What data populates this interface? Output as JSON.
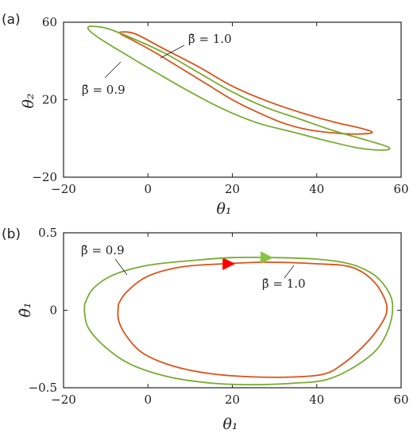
{
  "chart_data": [
    {
      "type": "line",
      "panel_label": "(a)",
      "xlabel": "θ₁",
      "ylabel": "θ₂",
      "xlim": [
        -20,
        60
      ],
      "ylim": [
        -20,
        60
      ],
      "xticks": [
        -20,
        0,
        20,
        40,
        60
      ],
      "yticks": [
        -20,
        20,
        60
      ],
      "xtick_labels": [
        "−20",
        "0",
        "20",
        "40",
        "60"
      ],
      "ytick_labels": [
        "−20",
        "20",
        "60"
      ],
      "grid": false,
      "series": [
        {
          "name": "β̄ = 1.0",
          "color": "#d95319",
          "points": [
            [
              -6.5,
              55
            ],
            [
              -3,
              54
            ],
            [
              4,
              46
            ],
            [
              12,
              37
            ],
            [
              20,
              27
            ],
            [
              28,
              19.5
            ],
            [
              36,
              13.5
            ],
            [
              44,
              8.5
            ],
            [
              50,
              5.5
            ],
            [
              53,
              3.5
            ],
            [
              52,
              2.5
            ],
            [
              46,
              2.5
            ],
            [
              38,
              4.5
            ],
            [
              32,
              8
            ],
            [
              26,
              13.5
            ],
            [
              20,
              20
            ],
            [
              14,
              28
            ],
            [
              8,
              36
            ],
            [
              2,
              44
            ],
            [
              -3,
              50
            ],
            [
              -6.5,
              54
            ],
            [
              -6.5,
              55
            ]
          ]
        },
        {
          "name": "β̄ = 0.9",
          "color": "#77ac30",
          "points": [
            [
              -14,
              58
            ],
            [
              -10,
              57
            ],
            [
              -4,
              52
            ],
            [
              4,
              44
            ],
            [
              12,
              34
            ],
            [
              20,
              24
            ],
            [
              28,
              16
            ],
            [
              36,
              10
            ],
            [
              44,
              4
            ],
            [
              52,
              -1
            ],
            [
              57,
              -4.5
            ],
            [
              56,
              -6
            ],
            [
              50,
              -5
            ],
            [
              42,
              -1
            ],
            [
              34,
              3.5
            ],
            [
              26,
              8
            ],
            [
              18,
              15
            ],
            [
              10,
              24
            ],
            [
              2,
              34
            ],
            [
              -5,
              43
            ],
            [
              -11,
              51
            ],
            [
              -14,
              56
            ],
            [
              -14,
              58
            ]
          ]
        }
      ],
      "annotations": [
        "β̄ = 1.0",
        "β̄ = 0.9"
      ]
    },
    {
      "type": "line",
      "panel_label": "(b)",
      "xlabel": "θ₁",
      "ylabel": "θ̇₁",
      "xlim": [
        -20,
        60
      ],
      "ylim": [
        -0.5,
        0.5
      ],
      "xticks": [
        -20,
        0,
        20,
        40,
        60
      ],
      "yticks": [
        -0.5,
        0,
        0.5
      ],
      "xtick_labels": [
        "−20",
        "0",
        "20",
        "40",
        "60"
      ],
      "ytick_labels": [
        "−0.5",
        "0",
        "0.5"
      ],
      "grid": false,
      "series": [
        {
          "name": "β̄ = 1.0",
          "color": "#d95319",
          "marker": {
            "x": 19,
            "y": 0.3,
            "color": "#ff0000",
            "shape": "triangle-right"
          },
          "points": [
            [
              -7,
              0.04
            ],
            [
              -5,
              0.12
            ],
            [
              0,
              0.22
            ],
            [
              8,
              0.28
            ],
            [
              18,
              0.3
            ],
            [
              28,
              0.31
            ],
            [
              40,
              0.3
            ],
            [
              48,
              0.28
            ],
            [
              53,
              0.2
            ],
            [
              56,
              0.08
            ],
            [
              56.5,
              -0.02
            ],
            [
              54,
              -0.14
            ],
            [
              50,
              -0.26
            ],
            [
              46,
              -0.35
            ],
            [
              42,
              -0.41
            ],
            [
              35,
              -0.43
            ],
            [
              25,
              -0.43
            ],
            [
              15,
              -0.41
            ],
            [
              6,
              -0.36
            ],
            [
              -1,
              -0.28
            ],
            [
              -5,
              -0.17
            ],
            [
              -7,
              -0.06
            ],
            [
              -7,
              0.04
            ]
          ]
        },
        {
          "name": "β̄ = 0.9",
          "color": "#77ac30",
          "marker": {
            "x": 28,
            "y": 0.34,
            "color": "#88c440",
            "shape": "triangle-right"
          },
          "points": [
            [
              -15,
              0.04
            ],
            [
              -13,
              0.14
            ],
            [
              -8,
              0.23
            ],
            [
              0,
              0.29
            ],
            [
              10,
              0.32
            ],
            [
              20,
              0.34
            ],
            [
              30,
              0.34
            ],
            [
              40,
              0.33
            ],
            [
              46,
              0.31
            ],
            [
              50,
              0.28
            ],
            [
              54,
              0.22
            ],
            [
              57,
              0.12
            ],
            [
              58,
              0.02
            ],
            [
              57,
              -0.12
            ],
            [
              54,
              -0.26
            ],
            [
              48,
              -0.38
            ],
            [
              42,
              -0.45
            ],
            [
              35,
              -0.47
            ],
            [
              25,
              -0.48
            ],
            [
              15,
              -0.47
            ],
            [
              5,
              -0.43
            ],
            [
              -4,
              -0.35
            ],
            [
              -10,
              -0.24
            ],
            [
              -14,
              -0.12
            ],
            [
              -15,
              -0.02
            ],
            [
              -15,
              0.04
            ]
          ]
        }
      ],
      "annotations": [
        "β̄ = 0.9",
        "β̄ = 1.0"
      ]
    }
  ],
  "annotation_layout": {
    "note": "label text positions are layout; values here are only text"
  }
}
